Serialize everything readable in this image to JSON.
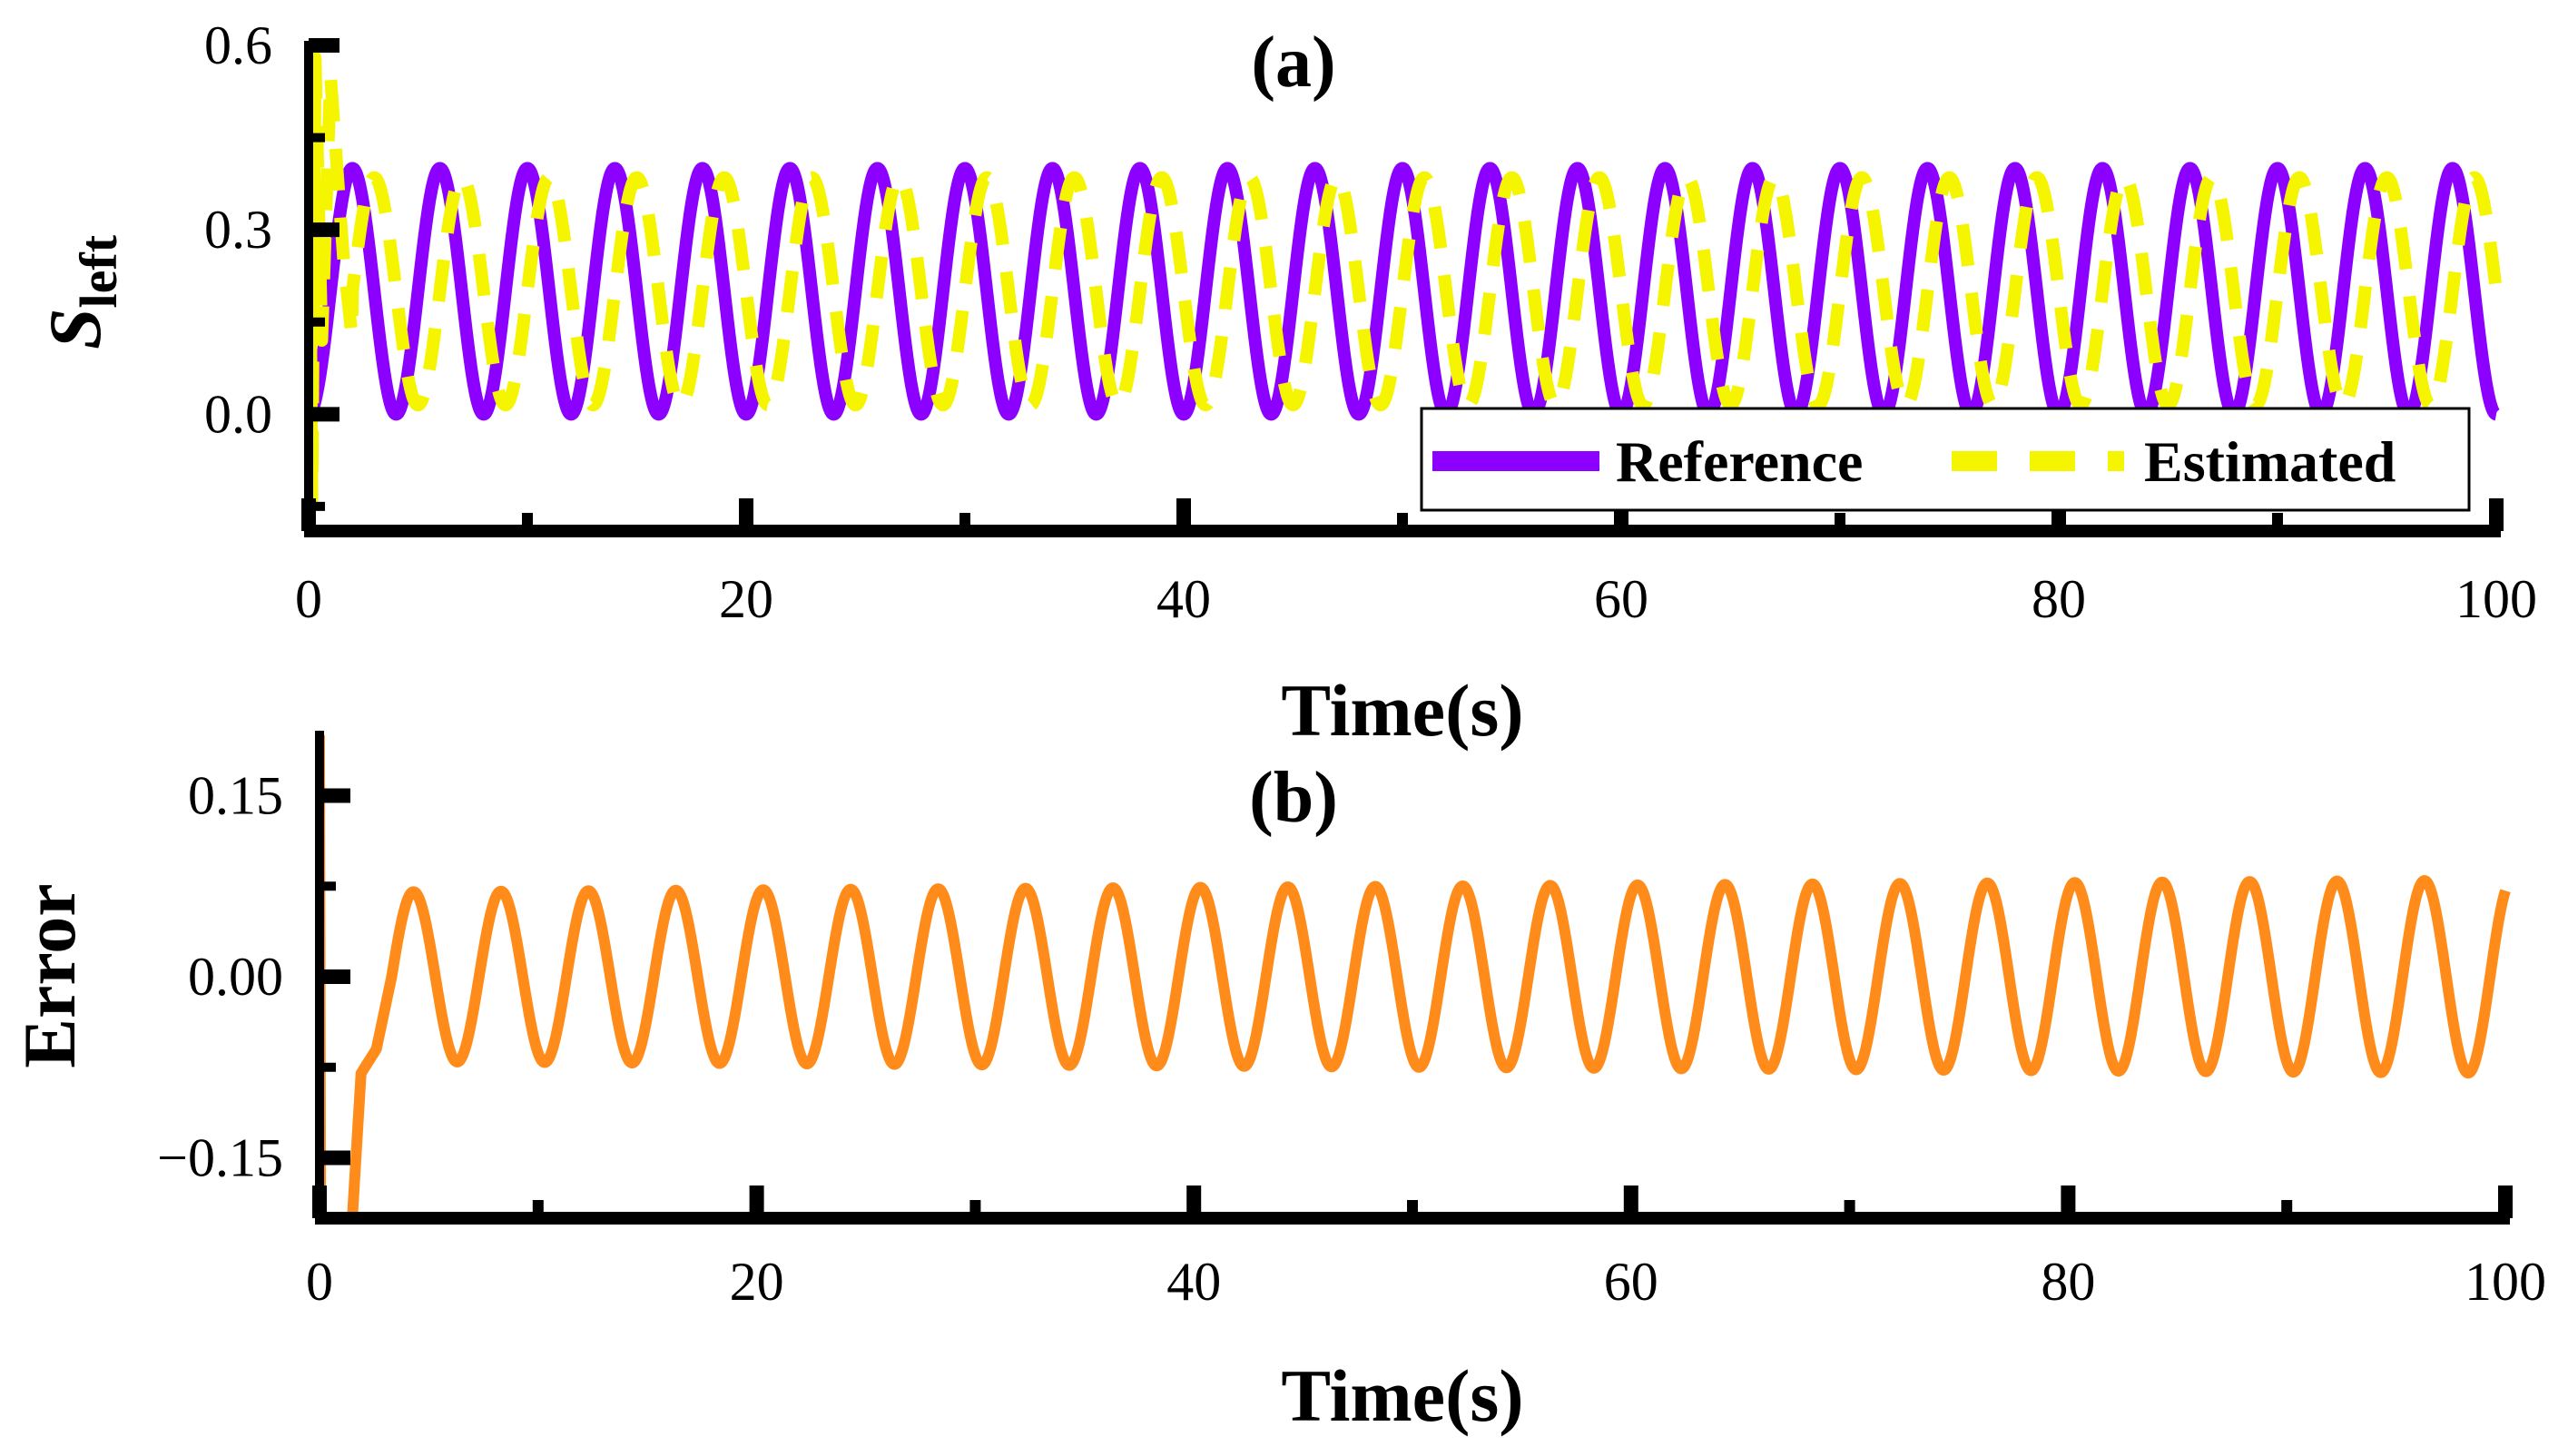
{
  "colors": {
    "reference": "#8B00FF",
    "estimated": "#F5F500",
    "error": "#FF8C1A",
    "axis": "#000000"
  },
  "chart_data": [
    {
      "panel": "a",
      "type": "line",
      "title": "(a)",
      "xlabel": "Time(s)",
      "ylabel_main": "S",
      "ylabel_sub": "left",
      "xlim": [
        0,
        100
      ],
      "ylim": [
        -0.19,
        0.6
      ],
      "xticks": [
        0,
        20,
        40,
        60,
        80,
        100
      ],
      "yticks": [
        0.0,
        0.3,
        0.6
      ],
      "ytick_labels": [
        "0.0",
        "0.3",
        "0.6"
      ],
      "legend_position": "bottom-right",
      "series": [
        {
          "name": "Reference",
          "style": "solid",
          "model": "sinusoid",
          "offset": 0.2,
          "amplitude": 0.2,
          "period": 4.0,
          "phase_time": 1.0,
          "start_value": 0.2
        },
        {
          "name": "Estimated",
          "style": "dashed",
          "model": "sinusoid-with-transient",
          "offset": 0.2,
          "amplitude": 0.185,
          "period": 4.0,
          "phase_time": 2.0,
          "transient": [
            [
              0.0,
              0.6
            ],
            [
              0.15,
              -0.14
            ],
            [
              0.3,
              0.58
            ],
            [
              0.6,
              0.12
            ],
            [
              1.0,
              0.55
            ],
            [
              1.6,
              0.25
            ],
            [
              2.0,
              0.12
            ]
          ]
        }
      ]
    },
    {
      "panel": "b",
      "type": "line",
      "title": "(b)",
      "xlabel": "Time(s)",
      "ylabel": "Error",
      "xlim": [
        0,
        100
      ],
      "ylim": [
        -0.2,
        0.2
      ],
      "xticks": [
        0,
        20,
        40,
        60,
        80,
        100
      ],
      "yticks": [
        -0.15,
        0.0,
        0.15
      ],
      "ytick_labels": [
        "−0.15",
        "0.00",
        "0.15"
      ],
      "series": [
        {
          "name": "Error",
          "style": "solid",
          "model": "sinusoid-with-transient",
          "offset": 0.0,
          "amplitude_start": 0.07,
          "amplitude_end": 0.08,
          "period": 4.0,
          "phase_time": 3.3,
          "transient": [
            [
              0.0,
              0.2
            ],
            [
              0.05,
              -0.2
            ],
            [
              1.5,
              -0.2
            ],
            [
              1.9,
              -0.08
            ],
            [
              2.6,
              -0.06
            ],
            [
              3.3,
              0.0
            ]
          ]
        }
      ]
    }
  ]
}
